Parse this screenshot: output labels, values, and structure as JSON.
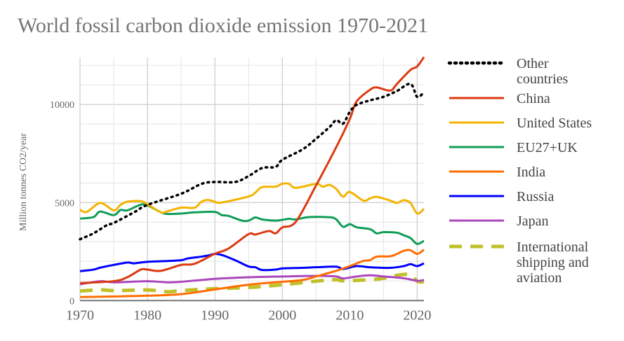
{
  "chart_data": {
    "type": "line",
    "title": "World fossil carbon dioxide emission 1970-2021",
    "xlabel": "",
    "ylabel": "Million tonnes CO2/year",
    "xlim": [
      1970,
      2021
    ],
    "ylim": [
      0,
      12400
    ],
    "x_ticks": [
      1970,
      1980,
      1990,
      2000,
      2010,
      2020
    ],
    "y_ticks": [
      0,
      5000,
      10000
    ],
    "grid": true,
    "legend_position": "right",
    "series": [
      {
        "name": "Other countries",
        "color": "#000000",
        "style": "dotted",
        "points": [
          [
            1970,
            3130
          ],
          [
            1972,
            3430
          ],
          [
            1974,
            3850
          ],
          [
            1975,
            3960
          ],
          [
            1978,
            4500
          ],
          [
            1980,
            4880
          ],
          [
            1985,
            5450
          ],
          [
            1988,
            5950
          ],
          [
            1990,
            6050
          ],
          [
            1993,
            6050
          ],
          [
            1995,
            6350
          ],
          [
            1997,
            6760
          ],
          [
            1999,
            6820
          ],
          [
            2000,
            7180
          ],
          [
            2003,
            7710
          ],
          [
            2005,
            8250
          ],
          [
            2007,
            8850
          ],
          [
            2008,
            9200
          ],
          [
            2009,
            9020
          ],
          [
            2010,
            9620
          ],
          [
            2011,
            9980
          ],
          [
            2013,
            10210
          ],
          [
            2015,
            10390
          ],
          [
            2017,
            10690
          ],
          [
            2019,
            11050
          ],
          [
            2020,
            10390
          ],
          [
            2021,
            10630
          ]
        ]
      },
      {
        "name": "China",
        "color": "#dc3912",
        "style": "solid",
        "points": [
          [
            1970,
            890
          ],
          [
            1975,
            990
          ],
          [
            1977,
            1190
          ],
          [
            1979,
            1580
          ],
          [
            1980,
            1580
          ],
          [
            1982,
            1520
          ],
          [
            1985,
            1820
          ],
          [
            1987,
            1880
          ],
          [
            1990,
            2390
          ],
          [
            1992,
            2650
          ],
          [
            1995,
            3390
          ],
          [
            1996,
            3370
          ],
          [
            1998,
            3550
          ],
          [
            1999,
            3430
          ],
          [
            2000,
            3730
          ],
          [
            2002,
            4020
          ],
          [
            2005,
            5870
          ],
          [
            2008,
            7830
          ],
          [
            2010,
            9260
          ],
          [
            2011,
            10150
          ],
          [
            2013,
            10750
          ],
          [
            2014,
            10870
          ],
          [
            2016,
            10710
          ],
          [
            2017,
            11050
          ],
          [
            2019,
            11760
          ],
          [
            2020,
            11940
          ],
          [
            2021,
            12420
          ]
        ]
      },
      {
        "name": "United States",
        "color": "#f4b400",
        "style": "solid",
        "points": [
          [
            1970,
            4640
          ],
          [
            1971,
            4520
          ],
          [
            1973,
            4980
          ],
          [
            1975,
            4600
          ],
          [
            1976,
            4880
          ],
          [
            1977,
            5040
          ],
          [
            1979,
            5070
          ],
          [
            1980,
            4920
          ],
          [
            1982,
            4500
          ],
          [
            1983,
            4560
          ],
          [
            1985,
            4740
          ],
          [
            1987,
            4740
          ],
          [
            1988,
            5040
          ],
          [
            1989,
            5130
          ],
          [
            1990,
            5040
          ],
          [
            1991,
            5000
          ],
          [
            1995,
            5310
          ],
          [
            1996,
            5510
          ],
          [
            1997,
            5790
          ],
          [
            1999,
            5810
          ],
          [
            2000,
            5960
          ],
          [
            2001,
            5950
          ],
          [
            2002,
            5750
          ],
          [
            2005,
            5950
          ],
          [
            2006,
            5810
          ],
          [
            2007,
            5900
          ],
          [
            2008,
            5690
          ],
          [
            2009,
            5300
          ],
          [
            2010,
            5540
          ],
          [
            2012,
            5100
          ],
          [
            2013,
            5210
          ],
          [
            2014,
            5290
          ],
          [
            2016,
            5100
          ],
          [
            2017,
            4980
          ],
          [
            2018,
            5120
          ],
          [
            2019,
            4980
          ],
          [
            2020,
            4440
          ],
          [
            2021,
            4680
          ]
        ]
      },
      {
        "name": "EU27+UK",
        "color": "#0f9d58",
        "style": "solid",
        "points": [
          [
            1970,
            4180
          ],
          [
            1972,
            4260
          ],
          [
            1973,
            4540
          ],
          [
            1975,
            4360
          ],
          [
            1976,
            4620
          ],
          [
            1977,
            4600
          ],
          [
            1979,
            4890
          ],
          [
            1980,
            4860
          ],
          [
            1982,
            4500
          ],
          [
            1983,
            4420
          ],
          [
            1985,
            4440
          ],
          [
            1987,
            4500
          ],
          [
            1990,
            4520
          ],
          [
            1991,
            4360
          ],
          [
            1992,
            4320
          ],
          [
            1994,
            4080
          ],
          [
            1995,
            4080
          ],
          [
            1996,
            4240
          ],
          [
            1997,
            4140
          ],
          [
            1999,
            4080
          ],
          [
            2000,
            4120
          ],
          [
            2001,
            4170
          ],
          [
            2002,
            4140
          ],
          [
            2004,
            4260
          ],
          [
            2007,
            4250
          ],
          [
            2008,
            4140
          ],
          [
            2009,
            3760
          ],
          [
            2010,
            3900
          ],
          [
            2011,
            3740
          ],
          [
            2013,
            3640
          ],
          [
            2014,
            3430
          ],
          [
            2015,
            3490
          ],
          [
            2017,
            3460
          ],
          [
            2018,
            3330
          ],
          [
            2019,
            3190
          ],
          [
            2020,
            2890
          ],
          [
            2021,
            3050
          ]
        ]
      },
      {
        "name": "India",
        "color": "#ff6d00",
        "style": "solid",
        "points": [
          [
            1970,
            180
          ],
          [
            1975,
            210
          ],
          [
            1980,
            250
          ],
          [
            1985,
            330
          ],
          [
            1990,
            570
          ],
          [
            1995,
            810
          ],
          [
            2000,
            960
          ],
          [
            2003,
            1050
          ],
          [
            2005,
            1230
          ],
          [
            2008,
            1520
          ],
          [
            2010,
            1760
          ],
          [
            2012,
            2020
          ],
          [
            2013,
            2060
          ],
          [
            2014,
            2240
          ],
          [
            2016,
            2260
          ],
          [
            2017,
            2380
          ],
          [
            2018,
            2540
          ],
          [
            2019,
            2570
          ],
          [
            2020,
            2380
          ],
          [
            2021,
            2600
          ]
        ]
      },
      {
        "name": "Russia",
        "color": "#0000ff",
        "style": "solid",
        "points": [
          [
            1970,
            1500
          ],
          [
            1972,
            1580
          ],
          [
            1973,
            1680
          ],
          [
            1975,
            1820
          ],
          [
            1977,
            1940
          ],
          [
            1978,
            1900
          ],
          [
            1980,
            1980
          ],
          [
            1983,
            2020
          ],
          [
            1985,
            2060
          ],
          [
            1986,
            2150
          ],
          [
            1988,
            2240
          ],
          [
            1989,
            2300
          ],
          [
            1990,
            2380
          ],
          [
            1991,
            2330
          ],
          [
            1993,
            2060
          ],
          [
            1995,
            1740
          ],
          [
            1996,
            1700
          ],
          [
            1997,
            1560
          ],
          [
            1999,
            1580
          ],
          [
            2000,
            1640
          ],
          [
            2003,
            1670
          ],
          [
            2005,
            1700
          ],
          [
            2008,
            1730
          ],
          [
            2009,
            1610
          ],
          [
            2011,
            1760
          ],
          [
            2013,
            1700
          ],
          [
            2016,
            1670
          ],
          [
            2018,
            1760
          ],
          [
            2019,
            1860
          ],
          [
            2020,
            1760
          ],
          [
            2021,
            1900
          ]
        ]
      },
      {
        "name": "Japan",
        "color": "#ab47bc",
        "style": "solid",
        "points": [
          [
            1970,
            830
          ],
          [
            1973,
            990
          ],
          [
            1975,
            930
          ],
          [
            1980,
            990
          ],
          [
            1983,
            930
          ],
          [
            1985,
            960
          ],
          [
            1990,
            1110
          ],
          [
            1995,
            1190
          ],
          [
            2000,
            1230
          ],
          [
            2005,
            1260
          ],
          [
            2008,
            1230
          ],
          [
            2009,
            1130
          ],
          [
            2011,
            1230
          ],
          [
            2013,
            1290
          ],
          [
            2015,
            1230
          ],
          [
            2018,
            1140
          ],
          [
            2020,
            1010
          ],
          [
            2021,
            1050
          ]
        ]
      },
      {
        "name": "International shipping and aviation",
        "color": "#c0c02a",
        "style": "dashed",
        "points": [
          [
            1970,
            490
          ],
          [
            1973,
            550
          ],
          [
            1975,
            510
          ],
          [
            1980,
            540
          ],
          [
            1983,
            450
          ],
          [
            1985,
            510
          ],
          [
            1990,
            610
          ],
          [
            1995,
            670
          ],
          [
            2000,
            810
          ],
          [
            2005,
            990
          ],
          [
            2008,
            1070
          ],
          [
            2009,
            1010
          ],
          [
            2013,
            1070
          ],
          [
            2015,
            1140
          ],
          [
            2017,
            1290
          ],
          [
            2019,
            1320
          ],
          [
            2020,
            990
          ],
          [
            2021,
            950
          ]
        ]
      }
    ]
  }
}
